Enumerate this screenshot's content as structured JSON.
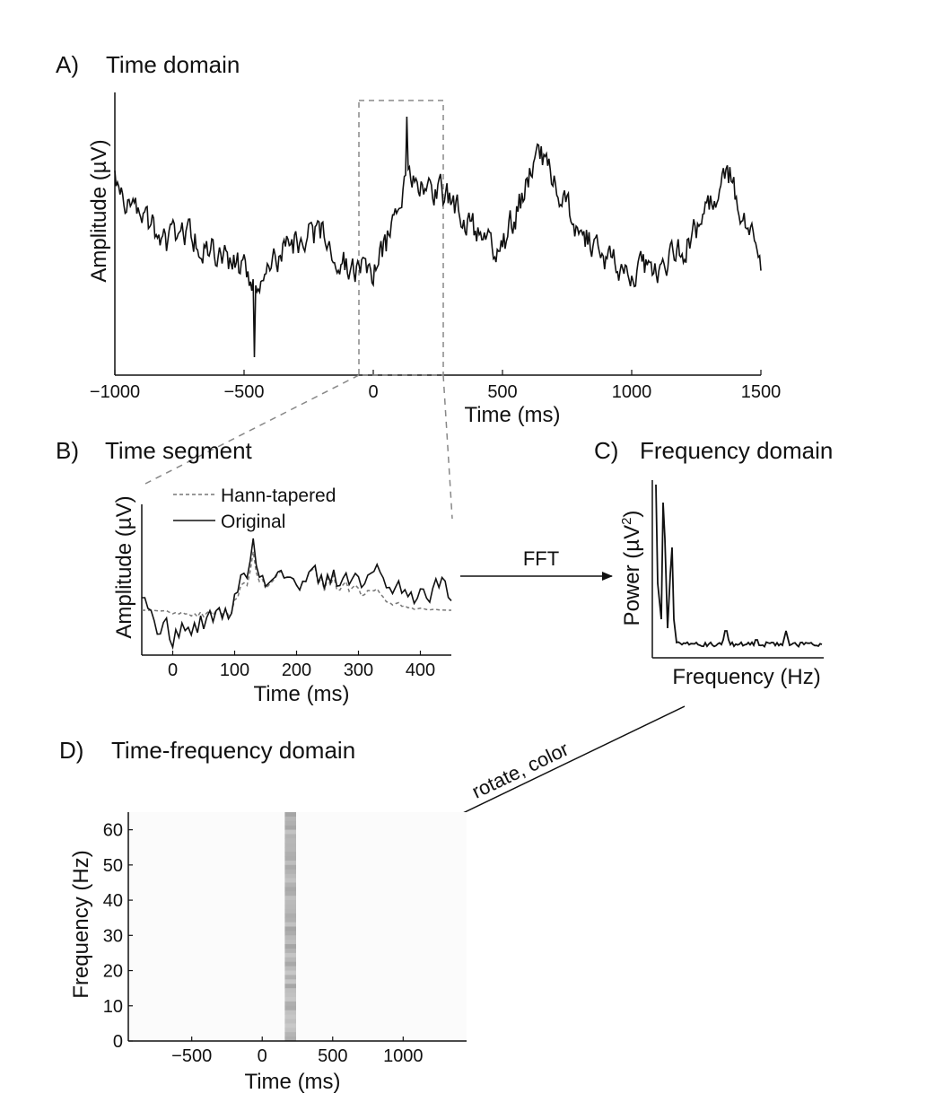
{
  "colors": {
    "trace": "#111111",
    "dashed": "#7a7a7a",
    "tf_background": "#fbfbfb",
    "tf_band": "#b4b4b4"
  },
  "panelA": {
    "letter": "A)",
    "title": "Time domain",
    "ylabel": "Amplitude (µV)",
    "xlabel": "Time (ms)",
    "xticks": [
      "−1000",
      "−500",
      "0",
      "500",
      "1000",
      "1500"
    ]
  },
  "panelB": {
    "letter": "B)",
    "title": "Time segment",
    "ylabel": "Amplitude (µV)",
    "xlabel": "Time (ms)",
    "xticks": [
      "0",
      "100",
      "200",
      "300",
      "400"
    ],
    "legend_tapered": "Hann-tapered",
    "legend_original": "Original"
  },
  "panelC": {
    "letter": "C)",
    "title": "Frequency domain",
    "ylabel": "Power (µV",
    "ylabel_sup": "2",
    "ylabel_end": ")",
    "xlabel": "Frequency (Hz)"
  },
  "panelD": {
    "letter": "D)",
    "title": "Time-frequency domain",
    "ylabel": "Frequency (Hz)",
    "xlabel": "Time (ms)",
    "xticks": [
      "−500",
      "0",
      "500",
      "1000"
    ],
    "yticks": [
      "0",
      "10",
      "20",
      "30",
      "40",
      "50",
      "60"
    ]
  },
  "arrows": {
    "fft": "FFT",
    "rotate": "rotate, color"
  },
  "chart_data": [
    {
      "type": "line",
      "panel": "A",
      "series": [
        {
          "values_note": "noisy EEG trace, -1000 to 1500 ms"
        }
      ],
      "xlim": [
        -1000,
        1500
      ],
      "highlight_window_ms": [
        -50,
        250
      ]
    },
    {
      "type": "line",
      "panel": "B",
      "xlim": [
        -50,
        450
      ],
      "series": [
        {
          "name": "Hann-tapered"
        },
        {
          "name": "Original"
        }
      ]
    },
    {
      "type": "line",
      "panel": "C",
      "peaks_present": true
    },
    {
      "type": "heatmap",
      "panel": "D",
      "xlim": [
        -950,
        1450
      ],
      "ylim": [
        0,
        65
      ],
      "band_ms": [
        160,
        240
      ]
    }
  ]
}
